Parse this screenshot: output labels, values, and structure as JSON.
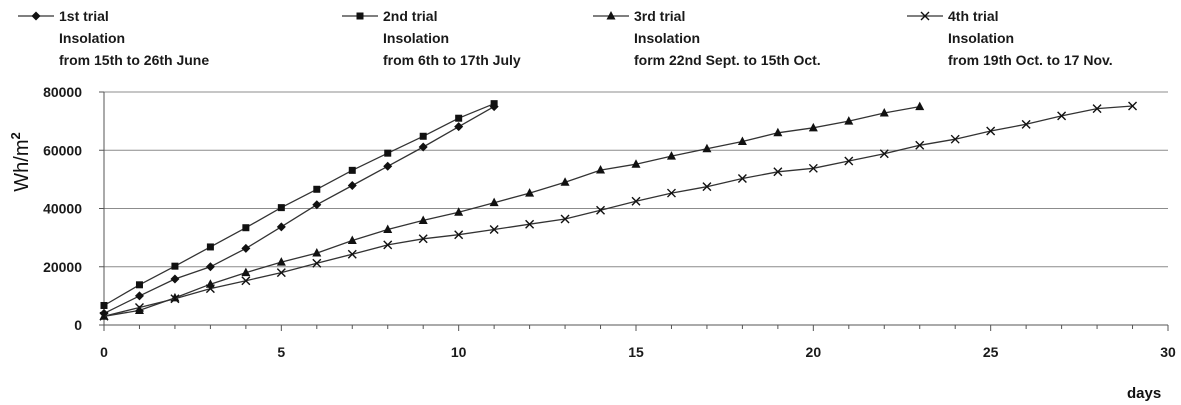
{
  "chart_data": {
    "type": "line",
    "xlabel": "days",
    "ylabel": "Wh/m",
    "ylabel_sup": "2",
    "xlim": [
      0,
      30
    ],
    "ylim": [
      0,
      80000
    ],
    "xticks": [
      0,
      5,
      10,
      15,
      20,
      25,
      30
    ],
    "yticks": [
      0,
      20000,
      40000,
      60000,
      80000
    ],
    "grid": "horizontal",
    "legend_position": "top",
    "series": [
      {
        "name": "1st trial",
        "legend_lines": [
          "1st trial",
          "Insolation",
          "from 15th to 26th June"
        ],
        "marker": "diamond",
        "x": [
          0,
          1,
          2,
          3,
          4,
          5,
          6,
          7,
          8,
          9,
          10,
          11
        ],
        "y": [
          4000,
          10000,
          15800,
          20000,
          26300,
          33700,
          41300,
          47900,
          54500,
          61100,
          68100,
          75000
        ]
      },
      {
        "name": "2nd trial",
        "legend_lines": [
          "2nd trial",
          "Insolation",
          "from 6th to 17th July"
        ],
        "marker": "square",
        "x": [
          0,
          1,
          2,
          3,
          4,
          5,
          6,
          7,
          8,
          9,
          10,
          11
        ],
        "y": [
          6700,
          13800,
          20200,
          26800,
          33400,
          40300,
          46600,
          53100,
          59000,
          64800,
          71000,
          76000
        ]
      },
      {
        "name": "3rd trial",
        "legend_lines": [
          "3rd trial",
          "Insolation",
          "form 22nd Sept. to 15th Oct."
        ],
        "marker": "triangle",
        "x": [
          0,
          1,
          2,
          3,
          4,
          5,
          6,
          7,
          8,
          9,
          10,
          11,
          12,
          13,
          14,
          15,
          16,
          17,
          18,
          19,
          20,
          21,
          22,
          23
        ],
        "y": [
          3000,
          5000,
          9300,
          14000,
          18000,
          21600,
          24700,
          29000,
          32800,
          35900,
          38700,
          42000,
          45300,
          49000,
          53200,
          55200,
          58000,
          60500,
          63000,
          66000,
          67700,
          70000,
          72800,
          75000
        ]
      },
      {
        "name": "4th trial",
        "legend_lines": [
          "4th trial",
          "Insolation",
          "from 19th Oct. to 17 Nov."
        ],
        "marker": "x",
        "x": [
          0,
          1,
          2,
          3,
          4,
          5,
          6,
          7,
          8,
          9,
          10,
          11,
          12,
          13,
          14,
          15,
          16,
          17,
          18,
          19,
          20,
          21,
          22,
          23,
          24,
          25,
          26,
          27,
          28,
          29
        ],
        "y": [
          3000,
          6000,
          9000,
          12500,
          15200,
          18000,
          21200,
          24300,
          27500,
          29600,
          31000,
          32800,
          34600,
          36400,
          39400,
          42500,
          45300,
          47500,
          50300,
          52600,
          53800,
          56300,
          58800,
          61700,
          63800,
          66600,
          68900,
          71800,
          74300,
          75200
        ]
      }
    ]
  }
}
